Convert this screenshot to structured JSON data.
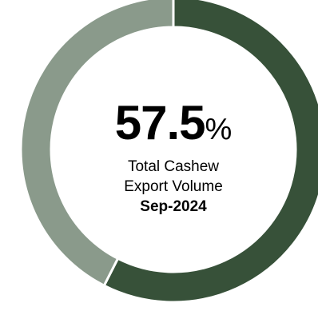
{
  "chart_data": {
    "type": "pie",
    "donut": true,
    "slices": [
      {
        "value": 57.5,
        "color": "#375139"
      },
      {
        "value": 42.5,
        "color": "#8a9a8b"
      }
    ],
    "center": {
      "value": "57.5",
      "unit": "%",
      "line1": "Total Cashew",
      "line2": "Export Volume",
      "date": "Sep-2024"
    }
  }
}
